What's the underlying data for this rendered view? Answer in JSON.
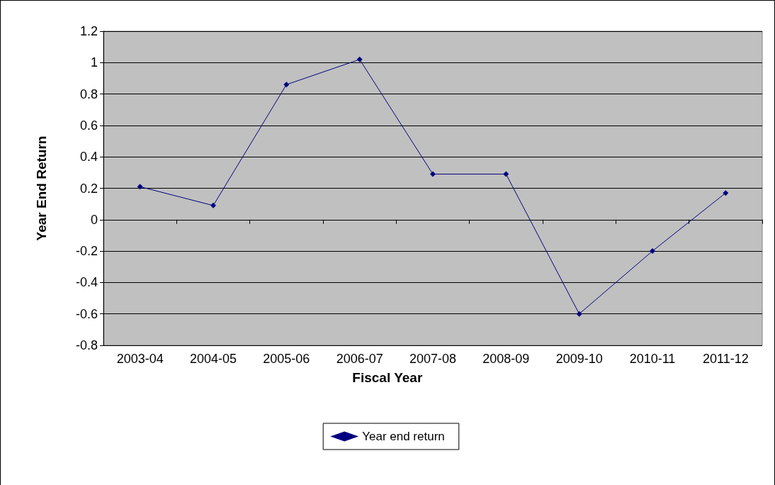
{
  "chart_data": {
    "type": "line",
    "xlabel": "Fiscal Year",
    "ylabel": "Year End Return",
    "categories": [
      "2003-04",
      "2004-05",
      "2005-06",
      "2006-07",
      "2007-08",
      "2008-09",
      "2009-10",
      "2010-11",
      "2011-12"
    ],
    "series": [
      {
        "name": "Year end return",
        "color": "#000080",
        "values": [
          0.21,
          0.09,
          0.86,
          1.02,
          0.29,
          0.29,
          -0.6,
          -0.2,
          0.17
        ]
      }
    ],
    "ylim": [
      -0.8,
      1.2
    ],
    "yticks": [
      -0.8,
      -0.6,
      -0.4,
      -0.2,
      0,
      0.2,
      0.4,
      0.6,
      0.8,
      1,
      1.2
    ],
    "grid": "y",
    "legend": "bottom",
    "marker": "diamond",
    "line_style": "solid"
  }
}
